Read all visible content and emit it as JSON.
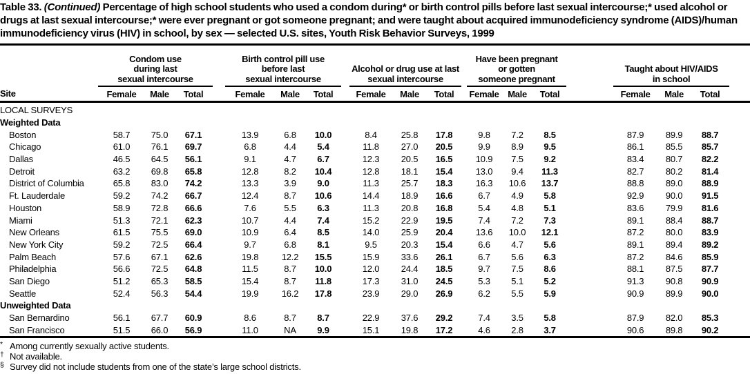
{
  "title": {
    "prefix": "Table 33.",
    "continued": "(Continued)",
    "rest": "Percentage of high school students who used a condom during* or birth control pills before last sexual intercourse;* used alcohol or drugs at last sexual intercourse;* were ever pregnant or got someone pregnant; and were taught about acquired immunodeficiency syndrome (AIDS)/human immunodeficiency virus (HIV) in school, by sex — selected U.S. sites, Youth Risk Behavior Surveys, 1999"
  },
  "table": {
    "site_header": "Site",
    "sub_headers": [
      "Female",
      "Male",
      "Total"
    ],
    "groups": [
      {
        "label": "Condom use\nduring last\nsexual intercourse"
      },
      {
        "label": "Birth control pill use\nbefore last\nsexual intercourse"
      },
      {
        "label": "Alcohol or drug use at last\nsexual intercourse"
      },
      {
        "label": "Have been pregnant\nor gotten\nsomeone pregnant"
      },
      {
        "label": "Taught about HIV/AIDS\nin school"
      }
    ],
    "sections": [
      {
        "label": "LOCAL SURVEYS",
        "bold": false,
        "rows": []
      },
      {
        "label": "Weighted Data",
        "bold": true,
        "rows": [
          {
            "site": "Boston",
            "values": [
              "58.7",
              "75.0",
              "67.1",
              "13.9",
              "6.8",
              "10.0",
              "8.4",
              "25.8",
              "17.8",
              "9.8",
              "7.2",
              "8.5",
              "87.9",
              "89.9",
              "88.7"
            ]
          },
          {
            "site": "Chicago",
            "values": [
              "61.0",
              "76.1",
              "69.7",
              "6.8",
              "4.4",
              "5.4",
              "11.8",
              "27.0",
              "20.5",
              "9.9",
              "8.9",
              "9.5",
              "86.1",
              "85.5",
              "85.7"
            ]
          },
          {
            "site": "Dallas",
            "values": [
              "46.5",
              "64.5",
              "56.1",
              "9.1",
              "4.7",
              "6.7",
              "12.3",
              "20.5",
              "16.5",
              "10.9",
              "7.5",
              "9.2",
              "83.4",
              "80.7",
              "82.2"
            ]
          },
          {
            "site": "Detroit",
            "values": [
              "63.2",
              "69.8",
              "65.8",
              "12.8",
              "8.2",
              "10.4",
              "12.8",
              "18.1",
              "15.4",
              "13.0",
              "9.4",
              "11.3",
              "82.7",
              "80.2",
              "81.4"
            ]
          },
          {
            "site": "District of Columbia",
            "values": [
              "65.8",
              "83.0",
              "74.2",
              "13.3",
              "3.9",
              "9.0",
              "11.3",
              "25.7",
              "18.3",
              "16.3",
              "10.6",
              "13.7",
              "88.8",
              "89.0",
              "88.9"
            ]
          },
          {
            "site": "Ft. Lauderdale",
            "values": [
              "59.2",
              "74.2",
              "66.7",
              "12.4",
              "8.7",
              "10.6",
              "14.4",
              "18.9",
              "16.6",
              "6.7",
              "4.9",
              "5.8",
              "92.9",
              "90.0",
              "91.5"
            ]
          },
          {
            "site": "Houston",
            "values": [
              "58.9",
              "72.8",
              "66.6",
              "7.6",
              "5.5",
              "6.3",
              "11.3",
              "20.8",
              "16.8",
              "5.4",
              "4.8",
              "5.1",
              "83.6",
              "79.9",
              "81.6"
            ]
          },
          {
            "site": "Miami",
            "values": [
              "51.3",
              "72.1",
              "62.3",
              "10.7",
              "4.4",
              "7.4",
              "15.2",
              "22.9",
              "19.5",
              "7.4",
              "7.2",
              "7.3",
              "89.1",
              "88.4",
              "88.7"
            ]
          },
          {
            "site": "New Orleans",
            "values": [
              "61.5",
              "75.5",
              "69.0",
              "10.9",
              "6.4",
              "8.5",
              "14.0",
              "25.9",
              "20.4",
              "13.6",
              "10.0",
              "12.1",
              "87.2",
              "80.0",
              "83.9"
            ]
          },
          {
            "site": "New York City",
            "values": [
              "59.2",
              "72.5",
              "66.4",
              "9.7",
              "6.8",
              "8.1",
              "9.5",
              "20.3",
              "15.4",
              "6.6",
              "4.7",
              "5.6",
              "89.1",
              "89.4",
              "89.2"
            ]
          },
          {
            "site": "Palm Beach",
            "values": [
              "57.6",
              "67.1",
              "62.6",
              "19.8",
              "12.2",
              "15.5",
              "15.9",
              "33.6",
              "26.1",
              "6.7",
              "5.6",
              "6.3",
              "87.2",
              "84.6",
              "85.9"
            ]
          },
          {
            "site": "Philadelphia",
            "values": [
              "56.6",
              "72.5",
              "64.8",
              "11.5",
              "8.7",
              "10.0",
              "12.0",
              "24.4",
              "18.5",
              "9.7",
              "7.5",
              "8.6",
              "88.1",
              "87.5",
              "87.7"
            ]
          },
          {
            "site": "San Diego",
            "values": [
              "51.2",
              "65.3",
              "58.5",
              "15.4",
              "8.7",
              "11.8",
              "17.3",
              "31.0",
              "24.5",
              "5.3",
              "5.1",
              "5.2",
              "91.3",
              "90.8",
              "90.9"
            ]
          },
          {
            "site": "Seattle",
            "values": [
              "52.4",
              "56.3",
              "54.4",
              "19.9",
              "16.2",
              "17.8",
              "23.9",
              "29.0",
              "26.9",
              "6.2",
              "5.5",
              "5.9",
              "90.9",
              "89.9",
              "90.0"
            ]
          }
        ]
      },
      {
        "label": "Unweighted Data",
        "bold": true,
        "rows": [
          {
            "site": "San Bernardino",
            "values": [
              "56.1",
              "67.7",
              "60.9",
              "8.6",
              "8.7",
              "8.7",
              "22.9",
              "37.6",
              "29.2",
              "7.4",
              "3.5",
              "5.8",
              "87.9",
              "82.0",
              "85.3"
            ]
          },
          {
            "site": "San Francisco",
            "values": [
              "51.5",
              "66.0",
              "56.9",
              "11.0",
              "NA",
              "9.9",
              "15.1",
              "19.8",
              "17.2",
              "4.6",
              "2.8",
              "3.7",
              "90.6",
              "89.8",
              "90.2"
            ]
          }
        ]
      }
    ]
  },
  "footnotes": [
    {
      "symbol": "*",
      "text": "Among currently sexually active students."
    },
    {
      "symbol": "†",
      "text": "Not available."
    },
    {
      "symbol": "§",
      "text": "Survey did not include students from one of the state’s large school districts."
    }
  ]
}
